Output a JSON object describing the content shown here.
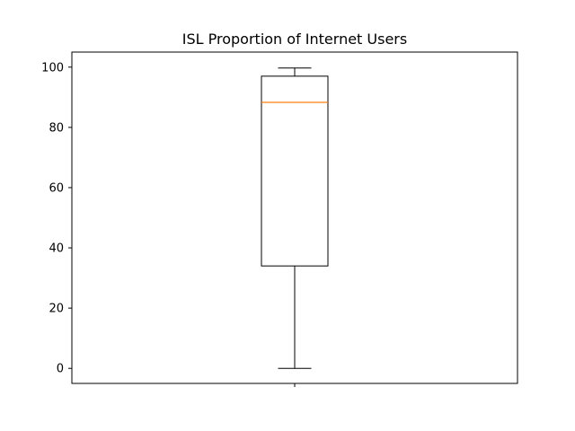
{
  "chart_data": {
    "type": "box",
    "title": "ISL Proportion of Internet Users",
    "xlabel": "",
    "ylabel": "",
    "ylim": [
      -5,
      105
    ],
    "yticks": [
      0,
      20,
      40,
      60,
      80,
      100
    ],
    "grid": false,
    "boxes": [
      {
        "min": 0,
        "q1": 34,
        "median": 88.3,
        "q3": 97,
        "max": 99.7
      }
    ],
    "colors": {
      "box": "#000000",
      "median": "#ff7f0e",
      "axes": "#000000",
      "background": "#ffffff"
    }
  }
}
